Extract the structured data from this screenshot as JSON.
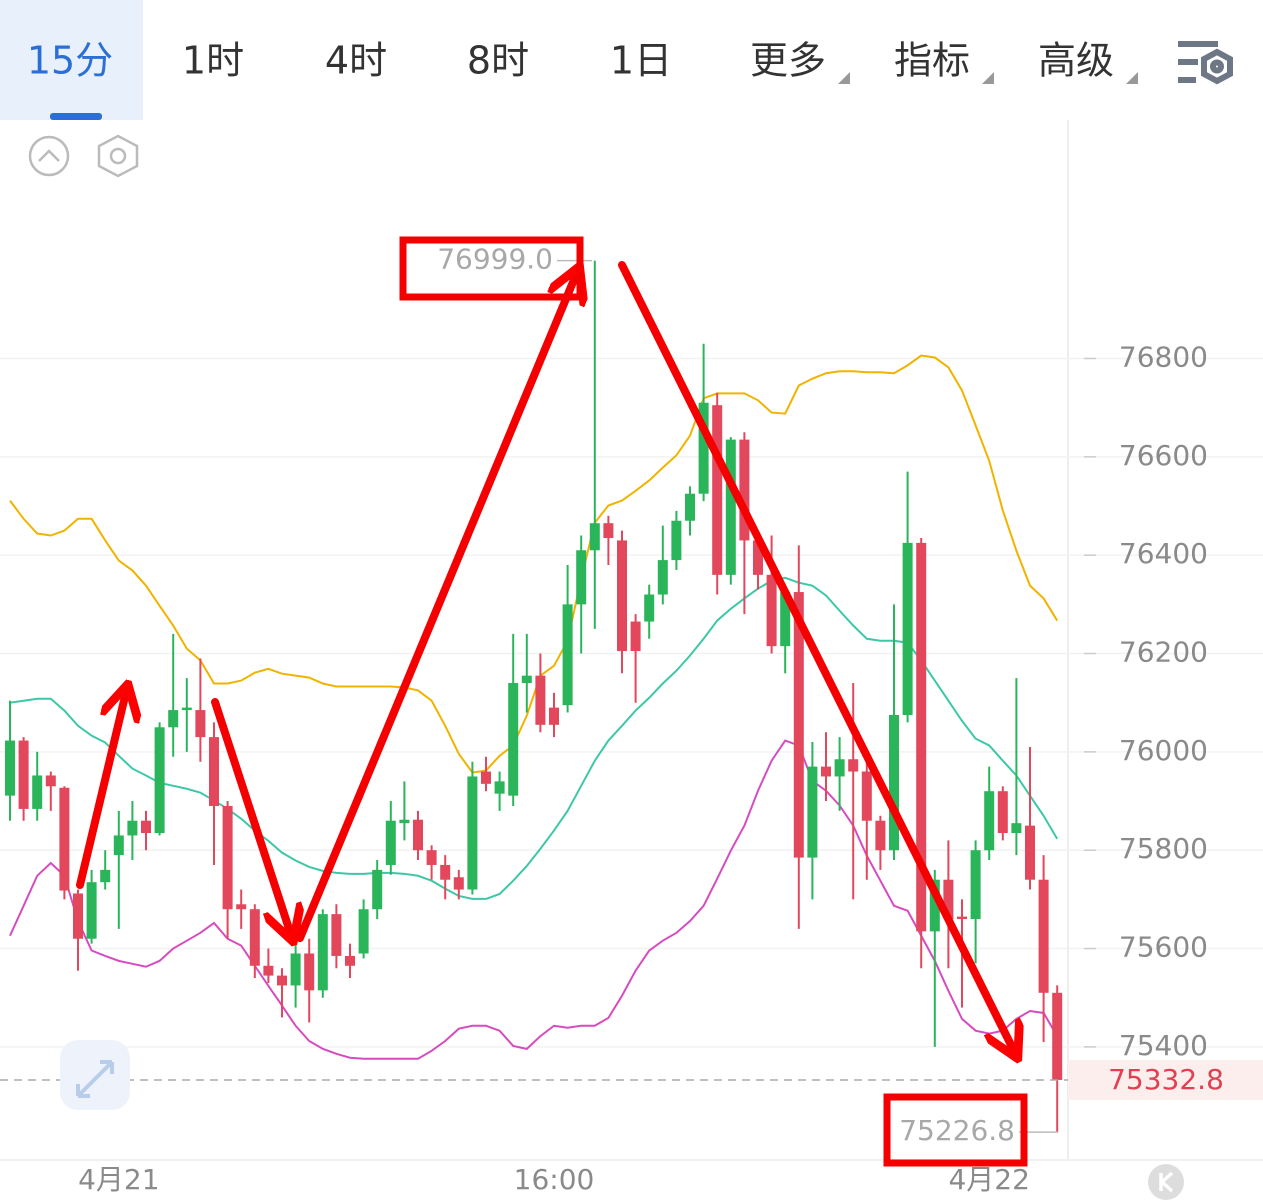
{
  "tabs": [
    "15分",
    "1时",
    "4时",
    "8时",
    "1日",
    "更多",
    "指标",
    "高级"
  ],
  "chart_data": {
    "type": "candlestick",
    "categories": [
      null,
      null,
      null,
      null,
      null,
      null,
      null,
      null,
      "4月21",
      null,
      null,
      null,
      null,
      null,
      null,
      null,
      null,
      null,
      null,
      null,
      null,
      null,
      null,
      null,
      null,
      null,
      null,
      null,
      null,
      null,
      null,
      null,
      null,
      null,
      null,
      null,
      null,
      null,
      null,
      null,
      "16:00",
      null,
      null,
      null,
      null,
      null,
      null,
      null,
      null,
      null,
      null,
      null,
      null,
      null,
      null,
      null,
      null,
      null,
      null,
      null,
      null,
      null,
      null,
      null,
      null,
      null,
      null,
      null,
      null,
      null,
      null,
      null,
      "4月22",
      null,
      null,
      null,
      null,
      null
    ],
    "open": [
      75911,
      76023,
      75884,
      75952,
      75927,
      75712,
      75620,
      75735,
      75790,
      75830,
      75860,
      75835,
      76050,
      76085,
      76085,
      76030,
      75890,
      75690,
      75680,
      75565,
      75545,
      75525,
      75590,
      75515,
      75670,
      75585,
      75590,
      75680,
      75770,
      75855,
      75862,
      75800,
      75770,
      75745,
      75720,
      75960,
      75915,
      75911,
      76140,
      76155,
      76090,
      76095,
      76300,
      76410,
      76465,
      76430,
      76265,
      76265,
      76320,
      76390,
      76470,
      76525,
      76705,
      76360,
      76635,
      76430,
      76360,
      76215,
      76325,
      75785,
      75970,
      75950,
      75985,
      75960,
      75860,
      75800,
      76075,
      76425,
      75635,
      75740,
      75665,
      75660,
      75800,
      75920,
      75835,
      75850,
      75740,
      75510
    ],
    "high": [
      76104,
      76030,
      76000,
      75960,
      75930,
      75720,
      75760,
      75800,
      75880,
      75900,
      75880,
      76060,
      76240,
      76150,
      76190,
      76060,
      75900,
      75720,
      75690,
      75600,
      75560,
      75620,
      75620,
      75680,
      75690,
      75610,
      75700,
      75780,
      75900,
      75940,
      75880,
      75810,
      75790,
      75760,
      75980,
      75990,
      75960,
      76240,
      76240,
      76200,
      76120,
      76380,
      76440,
      76999,
      76480,
      76450,
      76280,
      76340,
      76460,
      76490,
      76540,
      76830,
      76730,
      76640,
      76650,
      76440,
      76440,
      76340,
      76420,
      76020,
      76040,
      76030,
      76140,
      76000,
      75870,
      76300,
      76570,
      76435,
      75760,
      75820,
      75700,
      75820,
      75970,
      75930,
      76150,
      76010,
      75790,
      75525
    ],
    "low": [
      75860,
      75860,
      75860,
      75880,
      75700,
      75555,
      75610,
      75720,
      75640,
      75780,
      75800,
      75830,
      75990,
      76000,
      75980,
      75770,
      75620,
      75640,
      75540,
      75530,
      75460,
      75480,
      75450,
      75500,
      75560,
      75540,
      75580,
      75660,
      75750,
      75820,
      75780,
      75740,
      75700,
      75700,
      75710,
      75920,
      75880,
      75890,
      76080,
      76040,
      76030,
      76080,
      76200,
      76250,
      76380,
      76160,
      76100,
      76230,
      76300,
      76370,
      76440,
      76510,
      76320,
      76340,
      76280,
      76330,
      76200,
      76160,
      75640,
      75700,
      75900,
      75880,
      75700,
      75740,
      75760,
      75780,
      76060,
      75560,
      75400,
      75560,
      75480,
      75570,
      75780,
      75820,
      75790,
      75720,
      75410,
      75226.8
    ],
    "close": [
      76023,
      75884,
      75952,
      75930,
      75718,
      75620,
      75735,
      75760,
      75830,
      75860,
      75835,
      76050,
      76085,
      76090,
      76030,
      75890,
      75680,
      75680,
      75565,
      75545,
      75525,
      75590,
      75515,
      75670,
      75585,
      75565,
      75680,
      75760,
      75860,
      75862,
      75800,
      75770,
      75740,
      75720,
      75950,
      75935,
      75940,
      76140,
      76155,
      76055,
      76055,
      76300,
      76410,
      76465,
      76435,
      76205,
      76205,
      76320,
      76390,
      76470,
      76525,
      76710,
      76360,
      76635,
      76430,
      76360,
      76215,
      76325,
      75785,
      75970,
      75950,
      75985,
      75960,
      75860,
      75800,
      76075,
      76425,
      75635,
      75740,
      75660,
      75660,
      75800,
      75920,
      75835,
      75855,
      75740,
      75510,
      75332.8
    ],
    "up_color": "#2ab55a",
    "down_color": "#e2475b",
    "lines": [
      {
        "color": "#f0b400",
        "values": [
          76511,
          76474,
          76444,
          76440,
          76450,
          76474,
          76474,
          76430,
          76389,
          76369,
          76338,
          76297,
          76257,
          76210,
          76186,
          76139,
          76139,
          76145,
          76161,
          76169,
          76159,
          76155,
          76151,
          76139,
          76133,
          76133,
          76133,
          76133,
          76133,
          76131,
          76125,
          76104,
          76053,
          75996,
          75958,
          75962,
          75992,
          76013,
          76074,
          76155,
          76175,
          76226,
          76352,
          76466,
          76501,
          76511,
          76531,
          76552,
          76578,
          76603,
          76643,
          76719,
          76729,
          76729,
          76729,
          76715,
          76690,
          76688,
          76745,
          76759,
          76770,
          76774,
          76774,
          76772,
          76772,
          76770,
          76786,
          76806,
          76802,
          76782,
          76735,
          76664,
          76592,
          76491,
          76409,
          76338,
          76312,
          76267
        ]
      },
      {
        "color": "#3cc8a6",
        "values": [
          76100,
          76104,
          76108,
          76108,
          76084,
          76053,
          76033,
          76019,
          75992,
          75966,
          75952,
          75937,
          75931,
          75925,
          75917,
          75901,
          75884,
          75864,
          75840,
          75819,
          75795,
          75779,
          75766,
          75758,
          75754,
          75752,
          75752,
          75754,
          75754,
          75752,
          75748,
          75738,
          75722,
          75707,
          75701,
          75701,
          75711,
          75738,
          75768,
          75803,
          75840,
          75880,
          75931,
          75982,
          76023,
          76053,
          76084,
          76110,
          76139,
          76165,
          76196,
          76230,
          76267,
          76291,
          76312,
          76332,
          76348,
          76354,
          76344,
          76338,
          76318,
          76287,
          76257,
          76230,
          76226,
          76226,
          76222,
          76186,
          76145,
          76104,
          76063,
          76027,
          76013,
          75982,
          75952,
          75911,
          75870,
          75823
        ]
      },
      {
        "color": "#d64cc0",
        "values": [
          75626,
          75687,
          75748,
          75774,
          75748,
          75656,
          75596,
          75585,
          75575,
          75569,
          75563,
          75575,
          75600,
          75616,
          75632,
          75652,
          75620,
          75606,
          75565,
          75524,
          75484,
          75443,
          75412,
          75396,
          75386,
          75378,
          75376,
          75376,
          75376,
          75376,
          75376,
          75392,
          75412,
          75437,
          75443,
          75443,
          75433,
          75402,
          75396,
          75422,
          75443,
          75439,
          75443,
          75443,
          75459,
          75504,
          75555,
          75596,
          75616,
          75632,
          75656,
          75687,
          75742,
          75799,
          75850,
          75921,
          75982,
          76023,
          76013,
          75941,
          75921,
          75891,
          75850,
          75789,
          75738,
          75687,
          75677,
          75626,
          75575,
          75514,
          75457,
          75433,
          75427,
          75433,
          75457,
          75473,
          75469,
          75422
        ]
      }
    ],
    "ylim": [
      75170,
      77285
    ],
    "yticks": [
      75400,
      75600,
      75800,
      76000,
      76200,
      76400,
      76600,
      76800
    ],
    "grid": true,
    "annotations": [
      {
        "value": 76999,
        "label": "76999.0"
      },
      {
        "value": 75226.8,
        "label": "75226.8"
      }
    ],
    "last_price": {
      "value": 75332.8,
      "label": "75332.8"
    }
  }
}
